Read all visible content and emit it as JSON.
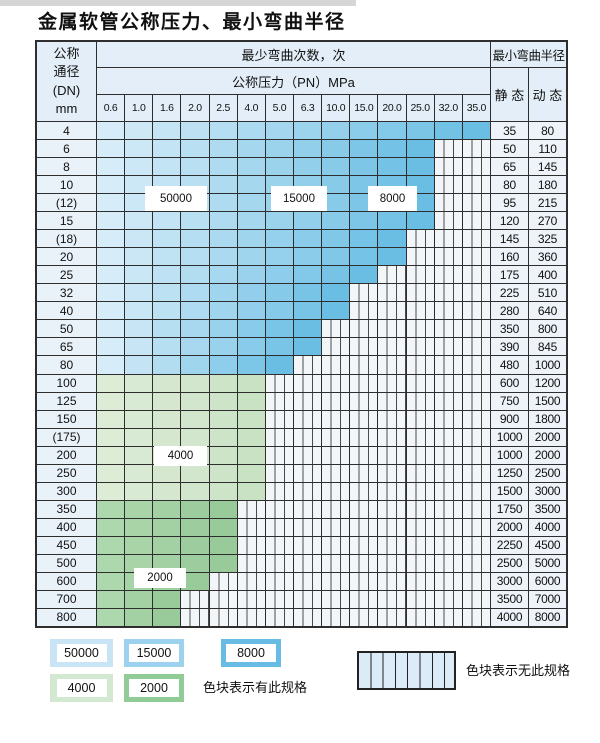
{
  "title": "金属软管公称压力、最小弯曲半径",
  "table": {
    "corner_header": [
      "公称",
      "通径",
      "(DN)",
      "mm"
    ],
    "bend_cycles_header": "最少弯曲次数，次",
    "pressure_header": "公称压力（PN）MPa",
    "radius_header": "最小弯曲半径",
    "static_header": "静 态",
    "dynamic_header": "动 态",
    "pressure_columns": [
      "0.6",
      "1.0",
      "1.6",
      "2.0",
      "2.5",
      "4.0",
      "5.0",
      "6.3",
      "10.0",
      "15.0",
      "20.0",
      "25.0",
      "32.0",
      "35.0"
    ],
    "rows": [
      {
        "dn": "4",
        "zone": "blue",
        "last_colored_col": 13,
        "static": "35",
        "dynamic": "80"
      },
      {
        "dn": "6",
        "zone": "blue",
        "last_colored_col": 11,
        "static": "50",
        "dynamic": "110"
      },
      {
        "dn": "8",
        "zone": "blue",
        "last_colored_col": 11,
        "static": "65",
        "dynamic": "145"
      },
      {
        "dn": "10",
        "zone": "blue",
        "last_colored_col": 11,
        "static": "80",
        "dynamic": "180"
      },
      {
        "dn": "(12)",
        "zone": "blue",
        "last_colored_col": 11,
        "static": "95",
        "dynamic": "215"
      },
      {
        "dn": "15",
        "zone": "blue",
        "last_colored_col": 11,
        "static": "120",
        "dynamic": "270"
      },
      {
        "dn": "(18)",
        "zone": "blue",
        "last_colored_col": 10,
        "static": "145",
        "dynamic": "325"
      },
      {
        "dn": "20",
        "zone": "blue",
        "last_colored_col": 10,
        "static": "160",
        "dynamic": "360"
      },
      {
        "dn": "25",
        "zone": "blue",
        "last_colored_col": 9,
        "static": "175",
        "dynamic": "400"
      },
      {
        "dn": "32",
        "zone": "blue",
        "last_colored_col": 8,
        "static": "225",
        "dynamic": "510"
      },
      {
        "dn": "40",
        "zone": "blue",
        "last_colored_col": 8,
        "static": "280",
        "dynamic": "640"
      },
      {
        "dn": "50",
        "zone": "blue",
        "last_colored_col": 7,
        "static": "350",
        "dynamic": "800"
      },
      {
        "dn": "65",
        "zone": "blue",
        "last_colored_col": 7,
        "static": "390",
        "dynamic": "845"
      },
      {
        "dn": "80",
        "zone": "blue",
        "last_colored_col": 6,
        "static": "480",
        "dynamic": "1000"
      },
      {
        "dn": "100",
        "zone": "green_light",
        "last_colored_col": 5,
        "static": "600",
        "dynamic": "1200"
      },
      {
        "dn": "125",
        "zone": "green_light",
        "last_colored_col": 5,
        "static": "750",
        "dynamic": "1500"
      },
      {
        "dn": "150",
        "zone": "green_light",
        "last_colored_col": 5,
        "static": "900",
        "dynamic": "1800"
      },
      {
        "dn": "(175)",
        "zone": "green_light",
        "last_colored_col": 5,
        "static": "1000",
        "dynamic": "2000"
      },
      {
        "dn": "200",
        "zone": "green_light",
        "last_colored_col": 5,
        "static": "1000",
        "dynamic": "2000"
      },
      {
        "dn": "250",
        "zone": "green_light",
        "last_colored_col": 5,
        "static": "1250",
        "dynamic": "2500"
      },
      {
        "dn": "300",
        "zone": "green_light",
        "last_colored_col": 5,
        "static": "1500",
        "dynamic": "3000"
      },
      {
        "dn": "350",
        "zone": "green_medium",
        "last_colored_col": 4,
        "static": "1750",
        "dynamic": "3500"
      },
      {
        "dn": "400",
        "zone": "green_medium",
        "last_colored_col": 4,
        "static": "2000",
        "dynamic": "4000"
      },
      {
        "dn": "450",
        "zone": "green_medium",
        "last_colored_col": 4,
        "static": "2250",
        "dynamic": "4500"
      },
      {
        "dn": "500",
        "zone": "green_medium",
        "last_colored_col": 4,
        "static": "2500",
        "dynamic": "5000"
      },
      {
        "dn": "600",
        "zone": "green_medium",
        "last_colored_col": 3,
        "static": "3000",
        "dynamic": "6000"
      },
      {
        "dn": "700",
        "zone": "green_medium",
        "last_colored_col": 2,
        "static": "3500",
        "dynamic": "7000"
      },
      {
        "dn": "800",
        "zone": "green_medium",
        "last_colored_col": 2,
        "static": "4000",
        "dynamic": "8000"
      }
    ]
  },
  "zone_labels": [
    {
      "text": "50000"
    },
    {
      "text": "15000"
    },
    {
      "text": "8000"
    },
    {
      "text": "4000"
    },
    {
      "text": "2000"
    }
  ],
  "legend": {
    "items": [
      {
        "label": "50000",
        "color": "#c9e4f5"
      },
      {
        "label": "15000",
        "color": "#9cd2ee"
      },
      {
        "label": "8000",
        "color": "#68bce3"
      },
      {
        "label": "4000",
        "color": "#d3e8d0"
      },
      {
        "label": "2000",
        "color": "#91cb96"
      }
    ],
    "has_spec_text": "色块表示有此规格",
    "no_spec_text": "色块表示无此规格"
  },
  "colors": {
    "grid_line": "#2e2e2e",
    "header_bg": "#e3eef8",
    "dn_bg": "#e9f1f9",
    "value_bg": "#edf3f9",
    "hatch_bg": "#f3f6f9",
    "hatch_line": "#4a4a4a",
    "blue_gradient": [
      "#d6ecf8",
      "#6abee4"
    ],
    "green_light_gradient": [
      "#dcecd7",
      "#cae2c4"
    ],
    "green_medium_gradient": [
      "#add7ad",
      "#98ca9a"
    ],
    "legend_striped_fill": "#dcebf8"
  }
}
